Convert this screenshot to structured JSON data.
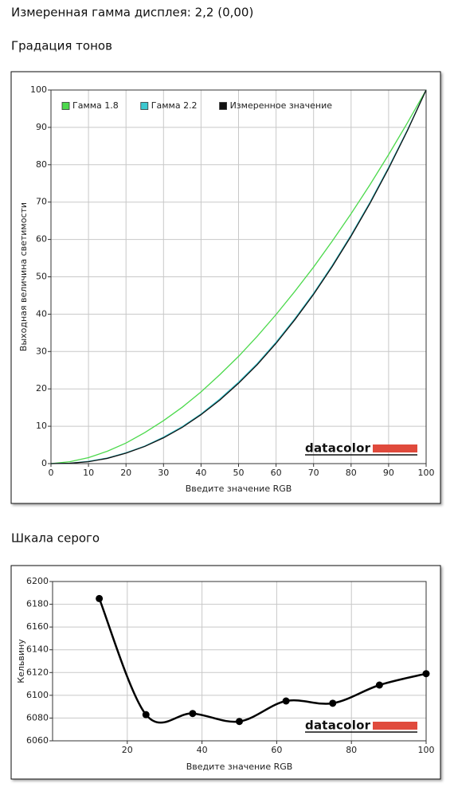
{
  "header": {
    "title": "Измеренная гамма дисплея: 2,2 (0,00)"
  },
  "chart_data": [
    {
      "type": "line",
      "title": "Градация тонов",
      "x_label": "Введите значение RGB",
      "y_label": "Выходная величина светимости",
      "logo": "datacolor",
      "x": [
        0,
        5,
        10,
        15,
        20,
        25,
        30,
        35,
        40,
        45,
        50,
        55,
        60,
        65,
        70,
        75,
        80,
        85,
        90,
        95,
        100
      ],
      "series": [
        {
          "name": "Гамма 1.8",
          "color": "#4cd94c",
          "values": [
            0,
            0.5,
            1.6,
            3.3,
            5.5,
            8.3,
            11.5,
            15.1,
            19.2,
            23.8,
            28.7,
            34.1,
            39.9,
            46.1,
            52.6,
            59.6,
            66.9,
            74.6,
            82.7,
            91.2,
            100
          ]
        },
        {
          "name": "Гамма 2.2",
          "color": "#3cc8d0",
          "values": [
            0,
            0.1,
            0.6,
            1.5,
            2.9,
            4.7,
            7.1,
            9.9,
            13.3,
            17.3,
            21.8,
            26.8,
            32.5,
            38.8,
            45.6,
            53.1,
            61.2,
            69.9,
            79.3,
            89.3,
            100
          ]
        },
        {
          "name": "Измеренное значение",
          "color": "#111111",
          "values": [
            0,
            0.1,
            0.5,
            1.4,
            2.8,
            4.6,
            6.9,
            9.7,
            13.1,
            17.0,
            21.5,
            26.5,
            32.2,
            38.5,
            45.3,
            52.8,
            60.9,
            69.6,
            79.0,
            89.1,
            100
          ]
        }
      ],
      "xlim": [
        0,
        100
      ],
      "ylim": [
        0,
        100
      ],
      "xticks": [
        0,
        10,
        20,
        30,
        40,
        50,
        60,
        70,
        80,
        90,
        100
      ],
      "yticks": [
        0,
        10,
        20,
        30,
        40,
        50,
        60,
        70,
        80,
        90,
        100
      ],
      "grid": true,
      "legend": "top-left"
    },
    {
      "type": "line",
      "title": "Шкала серого",
      "x_label": "Введите значение RGB",
      "y_label": "Кельвину",
      "logo": "datacolor",
      "x": [
        12.5,
        25,
        37.5,
        50,
        62.5,
        75,
        87.5,
        100
      ],
      "series": [
        {
          "color": "#000000",
          "values": [
            6185,
            6083,
            6084,
            6077,
            6095,
            6093,
            6109,
            6119
          ]
        }
      ],
      "xlim": [
        0,
        100
      ],
      "ylim": [
        6060,
        6200
      ],
      "xticks": [
        20,
        40,
        60,
        80,
        100
      ],
      "yticks": [
        6060,
        6080,
        6100,
        6120,
        6140,
        6160,
        6180,
        6200
      ],
      "grid": true,
      "smooth": true,
      "markers": true
    }
  ]
}
